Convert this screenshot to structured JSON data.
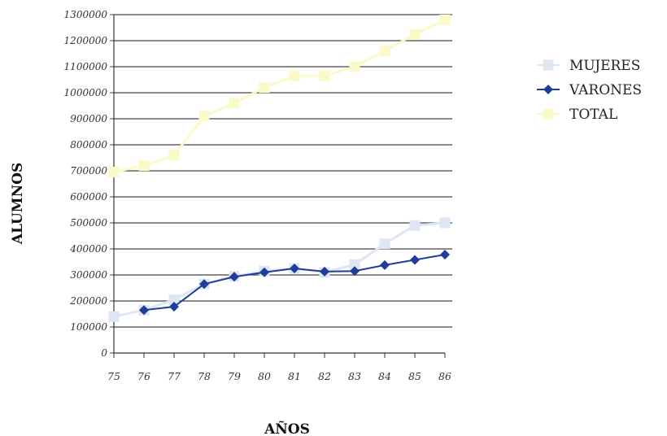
{
  "chart_data": {
    "type": "line",
    "title": "",
    "xlabel": "AÑOS",
    "ylabel": "ALUMNOS",
    "categories": [
      "75",
      "76",
      "77",
      "78",
      "79",
      "80",
      "81",
      "82",
      "83",
      "84",
      "85",
      "86"
    ],
    "yticks": [
      "0",
      "100000",
      "200000",
      "300000",
      "400000",
      "500000",
      "600000",
      "700000",
      "800000",
      "900000",
      "1000000",
      "1100000",
      "1200000",
      "1300000"
    ],
    "ylim": [
      0,
      1300000
    ],
    "grid": true,
    "legend_position": "right",
    "series": [
      {
        "name": "MUJERES",
        "color": "#dde6f2",
        "marker": "square",
        "values": [
          140000,
          165000,
          205000,
          265000,
          295000,
          315000,
          325000,
          310000,
          340000,
          420000,
          490000,
          500000
        ]
      },
      {
        "name": "VARONES",
        "color": "#1f3e9a",
        "marker": "diamond",
        "values": [
          null,
          165000,
          178000,
          265000,
          293000,
          310000,
          325000,
          313000,
          315000,
          338000,
          358000,
          378000
        ]
      },
      {
        "name": "TOTAL",
        "color": "#fafac8",
        "marker": "square",
        "values": [
          695000,
          720000,
          760000,
          910000,
          960000,
          1020000,
          1065000,
          1065000,
          1100000,
          1160000,
          1225000,
          1280000
        ]
      }
    ]
  }
}
